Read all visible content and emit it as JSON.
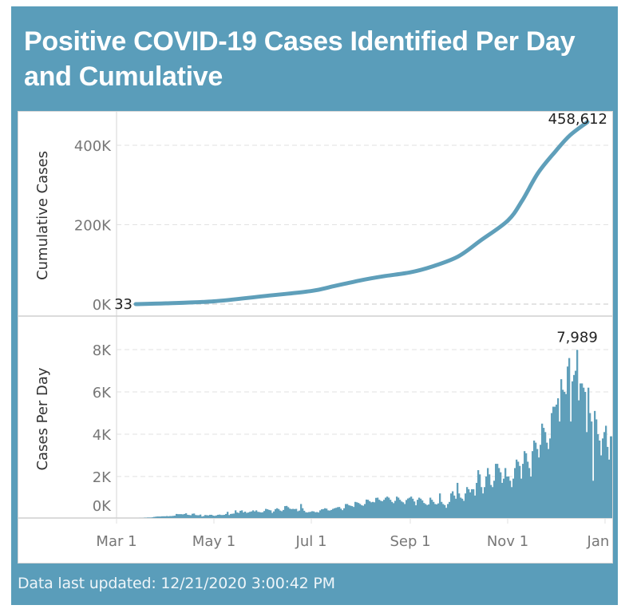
{
  "title": "Positive COVID-19 Cases Identified Per Day and Cumulative",
  "footer": "Data last updated: 12/21/2020 3:00:42 PM",
  "colors": {
    "frame": "#5a9dba",
    "series": "#5f9fba",
    "grid": "#e2e2e2",
    "axis_text": "#777777",
    "label_text": "#222222"
  },
  "chart_data": [
    {
      "type": "line",
      "title": "Cumulative Cases",
      "ylabel": "Cumulative Cases",
      "ylim": [
        0,
        470000
      ],
      "yticks": [
        0,
        200000,
        400000
      ],
      "ytick_labels": [
        "0K",
        "200K",
        "400K"
      ],
      "grid": true,
      "x_start_date": "2020-03-13",
      "x_end_date": "2020-12-21",
      "points": [
        [
          "2020-03-13",
          33
        ],
        [
          "2020-04-01",
          2000
        ],
        [
          "2020-05-01",
          7000
        ],
        [
          "2020-06-01",
          20000
        ],
        [
          "2020-07-01",
          33000
        ],
        [
          "2020-07-15",
          45000
        ],
        [
          "2020-08-01",
          60000
        ],
        [
          "2020-08-15",
          70000
        ],
        [
          "2020-09-01",
          80000
        ],
        [
          "2020-09-15",
          95000
        ],
        [
          "2020-10-01",
          120000
        ],
        [
          "2020-10-15",
          160000
        ],
        [
          "2020-11-01",
          210000
        ],
        [
          "2020-11-10",
          260000
        ],
        [
          "2020-11-20",
          330000
        ],
        [
          "2020-12-01",
          385000
        ],
        [
          "2020-12-10",
          425000
        ],
        [
          "2020-12-21",
          458612
        ]
      ],
      "annotations": [
        {
          "label": "33",
          "value": 33,
          "at": "start"
        },
        {
          "label": "458,612",
          "value": 458612,
          "at": "end"
        }
      ]
    },
    {
      "type": "bar",
      "title": "Cases Per Day",
      "ylabel": "Cases Per Day",
      "ylim": [
        0,
        8400
      ],
      "yticks": [
        0,
        2000,
        4000,
        6000,
        8000
      ],
      "ytick_labels": [
        "0K",
        "2K",
        "4K",
        "6K",
        "8K"
      ],
      "grid": true,
      "start_date": "2020-03-13",
      "values": [
        30,
        30,
        40,
        40,
        40,
        50,
        50,
        60,
        60,
        60,
        70,
        90,
        100,
        110,
        110,
        110,
        120,
        120,
        120,
        130,
        120,
        130,
        130,
        140,
        150,
        230,
        220,
        220,
        220,
        210,
        230,
        260,
        190,
        180,
        170,
        240,
        250,
        180,
        170,
        170,
        200,
        110,
        130,
        180,
        170,
        160,
        190,
        190,
        150,
        140,
        160,
        190,
        200,
        180,
        180,
        190,
        230,
        330,
        180,
        230,
        240,
        250,
        400,
        300,
        280,
        380,
        400,
        300,
        340,
        280,
        300,
        330,
        350,
        400,
        350,
        400,
        330,
        320,
        300,
        310,
        370,
        470,
        450,
        420,
        400,
        280,
        350,
        460,
        500,
        460,
        390,
        360,
        420,
        600,
        610,
        550,
        480,
        460,
        470,
        460,
        470,
        360,
        390,
        700,
        500,
        380,
        310,
        300,
        320,
        330,
        360,
        350,
        310,
        320,
        300,
        400,
        450,
        460,
        500,
        480,
        400,
        390,
        420,
        470,
        500,
        520,
        550,
        560,
        480,
        410,
        500,
        700,
        700,
        640,
        620,
        600,
        560,
        800,
        780,
        750,
        700,
        640,
        620,
        700,
        910,
        900,
        830,
        780,
        800,
        780,
        990,
        1000,
        900,
        850,
        830,
        900,
        1000,
        1050,
        1000,
        900,
        800,
        740,
        850,
        1050,
        1000,
        900,
        820,
        780,
        700,
        890,
        960,
        1000,
        1050,
        950,
        820,
        640,
        900,
        1000,
        950,
        870,
        750,
        700,
        650,
        680,
        1000,
        900,
        800,
        700,
        680,
        730,
        1200,
        800,
        700,
        650,
        520,
        700,
        800,
        1200,
        1300,
        1100,
        950,
        1700,
        1200,
        1000,
        950,
        850,
        1200,
        1500,
        1400,
        1250,
        1400,
        1400,
        1100,
        1700,
        2300,
        2100,
        1500,
        1200,
        1500,
        2000,
        2400,
        2100,
        1600,
        1500,
        1800,
        2600,
        2600,
        2400,
        2200,
        1700,
        1900,
        2400,
        2000,
        2000,
        1800,
        1500,
        1900,
        2400,
        2800,
        2700,
        2500,
        1900,
        2600,
        3200,
        3100,
        2700,
        2400,
        2000,
        3200,
        3700,
        3600,
        3300,
        2900,
        3500,
        4500,
        4300,
        4100,
        3600,
        3300,
        3800,
        5000,
        5300,
        5300,
        5400,
        5700,
        4600,
        6600,
        6100,
        6000,
        5900,
        7200,
        7600,
        4600,
        6500,
        6800,
        7000,
        7989,
        5600,
        6400,
        6400,
        6200,
        6000,
        4100,
        6200,
        5000,
        4600,
        1800,
        5100,
        4700,
        4000,
        3700,
        3000,
        3800,
        4100,
        4400,
        3400,
        2800,
        3900,
        3900,
        3300,
        3300,
        2500,
        3400,
        3700,
        3600,
        2500,
        1500
      ],
      "annotations": [
        {
          "label": "7,989",
          "value": 7989,
          "at": "max"
        }
      ]
    }
  ],
  "xaxis": {
    "ticks": [
      {
        "date": "2020-03-01",
        "label": "Mar 1"
      },
      {
        "date": "2020-05-01",
        "label": "May 1"
      },
      {
        "date": "2020-07-01",
        "label": "Jul 1"
      },
      {
        "date": "2020-09-01",
        "label": "Sep 1"
      },
      {
        "date": "2020-11-01",
        "label": "Nov 1"
      },
      {
        "date": "2021-01-01",
        "label": "Jan 1"
      }
    ],
    "range": [
      "2020-03-01",
      "2021-01-01"
    ]
  }
}
